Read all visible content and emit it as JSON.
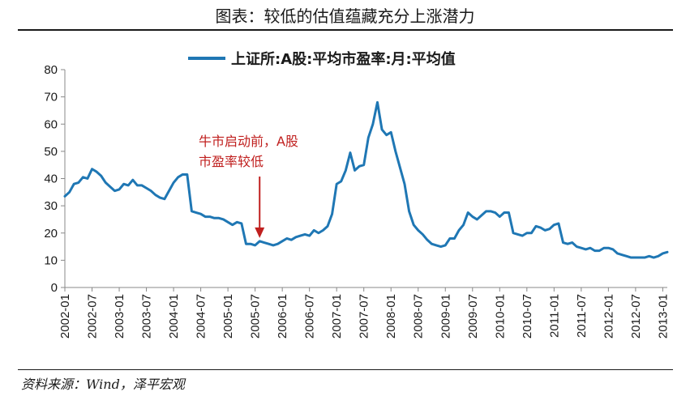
{
  "figure": {
    "title": "图表：较低的估值蕴藏充分上涨潜力",
    "source": "资料来源：Wind，泽平宏观"
  },
  "colors": {
    "line": "#1f77b4",
    "annotation": "#c0201f",
    "axis": "#888888",
    "text": "#1a1a1a"
  },
  "chart_data": {
    "type": "line",
    "title": "",
    "xlabel": "",
    "ylabel": "",
    "ylim": [
      0,
      80
    ],
    "yticks": [
      0,
      10,
      20,
      30,
      40,
      50,
      60,
      70,
      80
    ],
    "xticks": [
      "2002-01",
      "2002-07",
      "2003-01",
      "2003-07",
      "2004-01",
      "2004-07",
      "2005-01",
      "2005-07",
      "2006-01",
      "2006-07",
      "2007-01",
      "2007-07",
      "2008-01",
      "2008-07",
      "2009-01",
      "2009-07",
      "2010-01",
      "2010-07",
      "2011-01",
      "2011-07",
      "2012-01",
      "2012-07",
      "2013-01"
    ],
    "legend": {
      "position": "top",
      "label": "上证所:A股:平均市盈率:月:平均值"
    },
    "grid": false,
    "series": [
      {
        "name": "上证所:A股:平均市盈率:月:平均值",
        "x": [
          "2002-01",
          "2002-02",
          "2002-03",
          "2002-04",
          "2002-05",
          "2002-06",
          "2002-07",
          "2002-08",
          "2002-09",
          "2002-10",
          "2002-11",
          "2002-12",
          "2003-01",
          "2003-02",
          "2003-03",
          "2003-04",
          "2003-05",
          "2003-06",
          "2003-07",
          "2003-08",
          "2003-09",
          "2003-10",
          "2003-11",
          "2003-12",
          "2004-01",
          "2004-02",
          "2004-03",
          "2004-04",
          "2004-05",
          "2004-06",
          "2004-07",
          "2004-08",
          "2004-09",
          "2004-10",
          "2004-11",
          "2004-12",
          "2005-01",
          "2005-02",
          "2005-03",
          "2005-04",
          "2005-05",
          "2005-06",
          "2005-07",
          "2005-08",
          "2005-09",
          "2005-10",
          "2005-11",
          "2005-12",
          "2006-01",
          "2006-02",
          "2006-03",
          "2006-04",
          "2006-05",
          "2006-06",
          "2006-07",
          "2006-08",
          "2006-09",
          "2006-10",
          "2006-11",
          "2006-12",
          "2007-01",
          "2007-02",
          "2007-03",
          "2007-04",
          "2007-05",
          "2007-06",
          "2007-07",
          "2007-08",
          "2007-09",
          "2007-10",
          "2007-11",
          "2007-12",
          "2008-01",
          "2008-02",
          "2008-03",
          "2008-04",
          "2008-05",
          "2008-06",
          "2008-07",
          "2008-08",
          "2008-09",
          "2008-10",
          "2008-11",
          "2008-12",
          "2009-01",
          "2009-02",
          "2009-03",
          "2009-04",
          "2009-05",
          "2009-06",
          "2009-07",
          "2009-08",
          "2009-09",
          "2009-10",
          "2009-11",
          "2009-12",
          "2010-01",
          "2010-02",
          "2010-03",
          "2010-04",
          "2010-05",
          "2010-06",
          "2010-07",
          "2010-08",
          "2010-09",
          "2010-10",
          "2010-11",
          "2010-12",
          "2011-01",
          "2011-02",
          "2011-03",
          "2011-04",
          "2011-05",
          "2011-06",
          "2011-07",
          "2011-08",
          "2011-09",
          "2011-10",
          "2011-11",
          "2011-12",
          "2012-01",
          "2012-02",
          "2012-03",
          "2012-04",
          "2012-05",
          "2012-06",
          "2012-07",
          "2012-08",
          "2012-09",
          "2012-10",
          "2012-11",
          "2012-12",
          "2013-01",
          "2013-02"
        ],
        "values": [
          33.5,
          35,
          38,
          38.5,
          40.5,
          40,
          43.5,
          42.5,
          41,
          38.5,
          37,
          35.5,
          36,
          38,
          37.5,
          39.5,
          37.5,
          37.5,
          36.5,
          35.5,
          34,
          33,
          32.5,
          35.5,
          38.5,
          40.5,
          41.5,
          41.5,
          28,
          27.5,
          27,
          26,
          26,
          25.5,
          25.5,
          25,
          24,
          23,
          24,
          23.5,
          16,
          16,
          15.5,
          17,
          16.5,
          16,
          15.5,
          16,
          17,
          18,
          17.5,
          18.5,
          19,
          19.5,
          19,
          21,
          20,
          21,
          22.5,
          27,
          38,
          39,
          43,
          49.5,
          43,
          44.5,
          45,
          55,
          60,
          68,
          58,
          56,
          57,
          50,
          44,
          38,
          28,
          23,
          21,
          19.5,
          17.5,
          16,
          15.5,
          15,
          15.5,
          18,
          18,
          21,
          23,
          27.5,
          26,
          25,
          26.5,
          28,
          28,
          27.5,
          26,
          27.5,
          27.5,
          20,
          19.5,
          19,
          20,
          20,
          22.5,
          22,
          21,
          21.5,
          23,
          23.5,
          16.5,
          16,
          16.5,
          15,
          14.5,
          14,
          14.5,
          13.5,
          13.5,
          14.5,
          14.5,
          14,
          12.5,
          12,
          11.5,
          11,
          11,
          11,
          11,
          11.5,
          11,
          11.5,
          12.5,
          13
        ]
      }
    ],
    "annotations": [
      {
        "lines": [
          "牛市启动前，A股",
          "市盈率较低"
        ],
        "target_x": "2005-08",
        "target_y": 17
      }
    ]
  }
}
